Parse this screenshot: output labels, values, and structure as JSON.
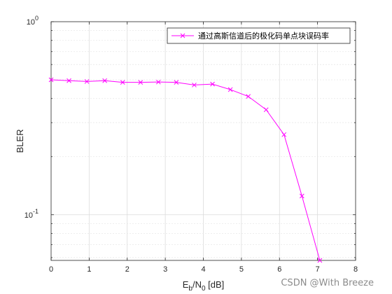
{
  "chart_data": {
    "type": "line",
    "x": [
      0,
      0.47,
      0.94,
      1.41,
      1.88,
      2.35,
      2.82,
      3.29,
      3.76,
      4.24,
      4.71,
      5.18,
      5.65,
      6.12,
      6.59,
      7.06
    ],
    "series": [
      {
        "name": "通过高斯信道后的极化码单点块误码率",
        "color": "#ff00ff",
        "marker": "x",
        "values": [
          0.5,
          0.495,
          0.49,
          0.495,
          0.485,
          0.485,
          0.487,
          0.485,
          0.47,
          0.475,
          0.445,
          0.41,
          0.35,
          0.26,
          0.125,
          0.058
        ]
      }
    ],
    "xlabel": {
      "main": "E",
      "sub1": "b",
      "mid": "/N",
      "sub2": "0",
      "unit": " [dB]"
    },
    "ylabel": "BLER",
    "xlim": [
      0,
      8
    ],
    "ylim": [
      0.058,
      1
    ],
    "yscale": "log",
    "xticks": [
      "0",
      "1",
      "2",
      "3",
      "4",
      "5",
      "6",
      "7",
      "8"
    ],
    "yticks": [
      {
        "value": 1,
        "base": "10",
        "exp": "0"
      },
      {
        "value": 0.1,
        "base": "10",
        "exp": "-1"
      }
    ],
    "grid": true,
    "legend_position": "top-right"
  },
  "watermark": "CSDN @With Breeze"
}
